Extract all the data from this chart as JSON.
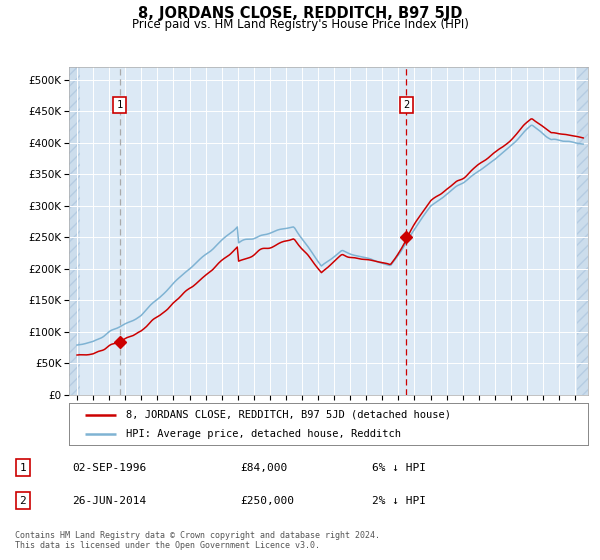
{
  "title": "8, JORDANS CLOSE, REDDITCH, B97 5JD",
  "subtitle": "Price paid vs. HM Land Registry's House Price Index (HPI)",
  "legend_line1": "8, JORDANS CLOSE, REDDITCH, B97 5JD (detached house)",
  "legend_line2": "HPI: Average price, detached house, Redditch",
  "annotation1_date": "02-SEP-1996",
  "annotation1_price": "£84,000",
  "annotation1_hpi": "6% ↓ HPI",
  "annotation1_year": 1996.67,
  "annotation1_value": 84000,
  "annotation2_date": "26-JUN-2014",
  "annotation2_price": "£250,000",
  "annotation2_hpi": "2% ↓ HPI",
  "annotation2_year": 2014.49,
  "annotation2_value": 250000,
  "footer": "Contains HM Land Registry data © Crown copyright and database right 2024.\nThis data is licensed under the Open Government Licence v3.0.",
  "ylim": [
    0,
    520000
  ],
  "xlim_start": 1993.5,
  "xlim_end": 2025.8,
  "background_color": "#dce9f5",
  "hpi_color": "#7fb3d3",
  "price_color": "#cc0000",
  "vline1_color": "#aaaaaa",
  "vline2_color": "#cc0000",
  "marker_color": "#cc0000",
  "grid_color": "#ffffff",
  "ann_box_color": "#cc0000"
}
